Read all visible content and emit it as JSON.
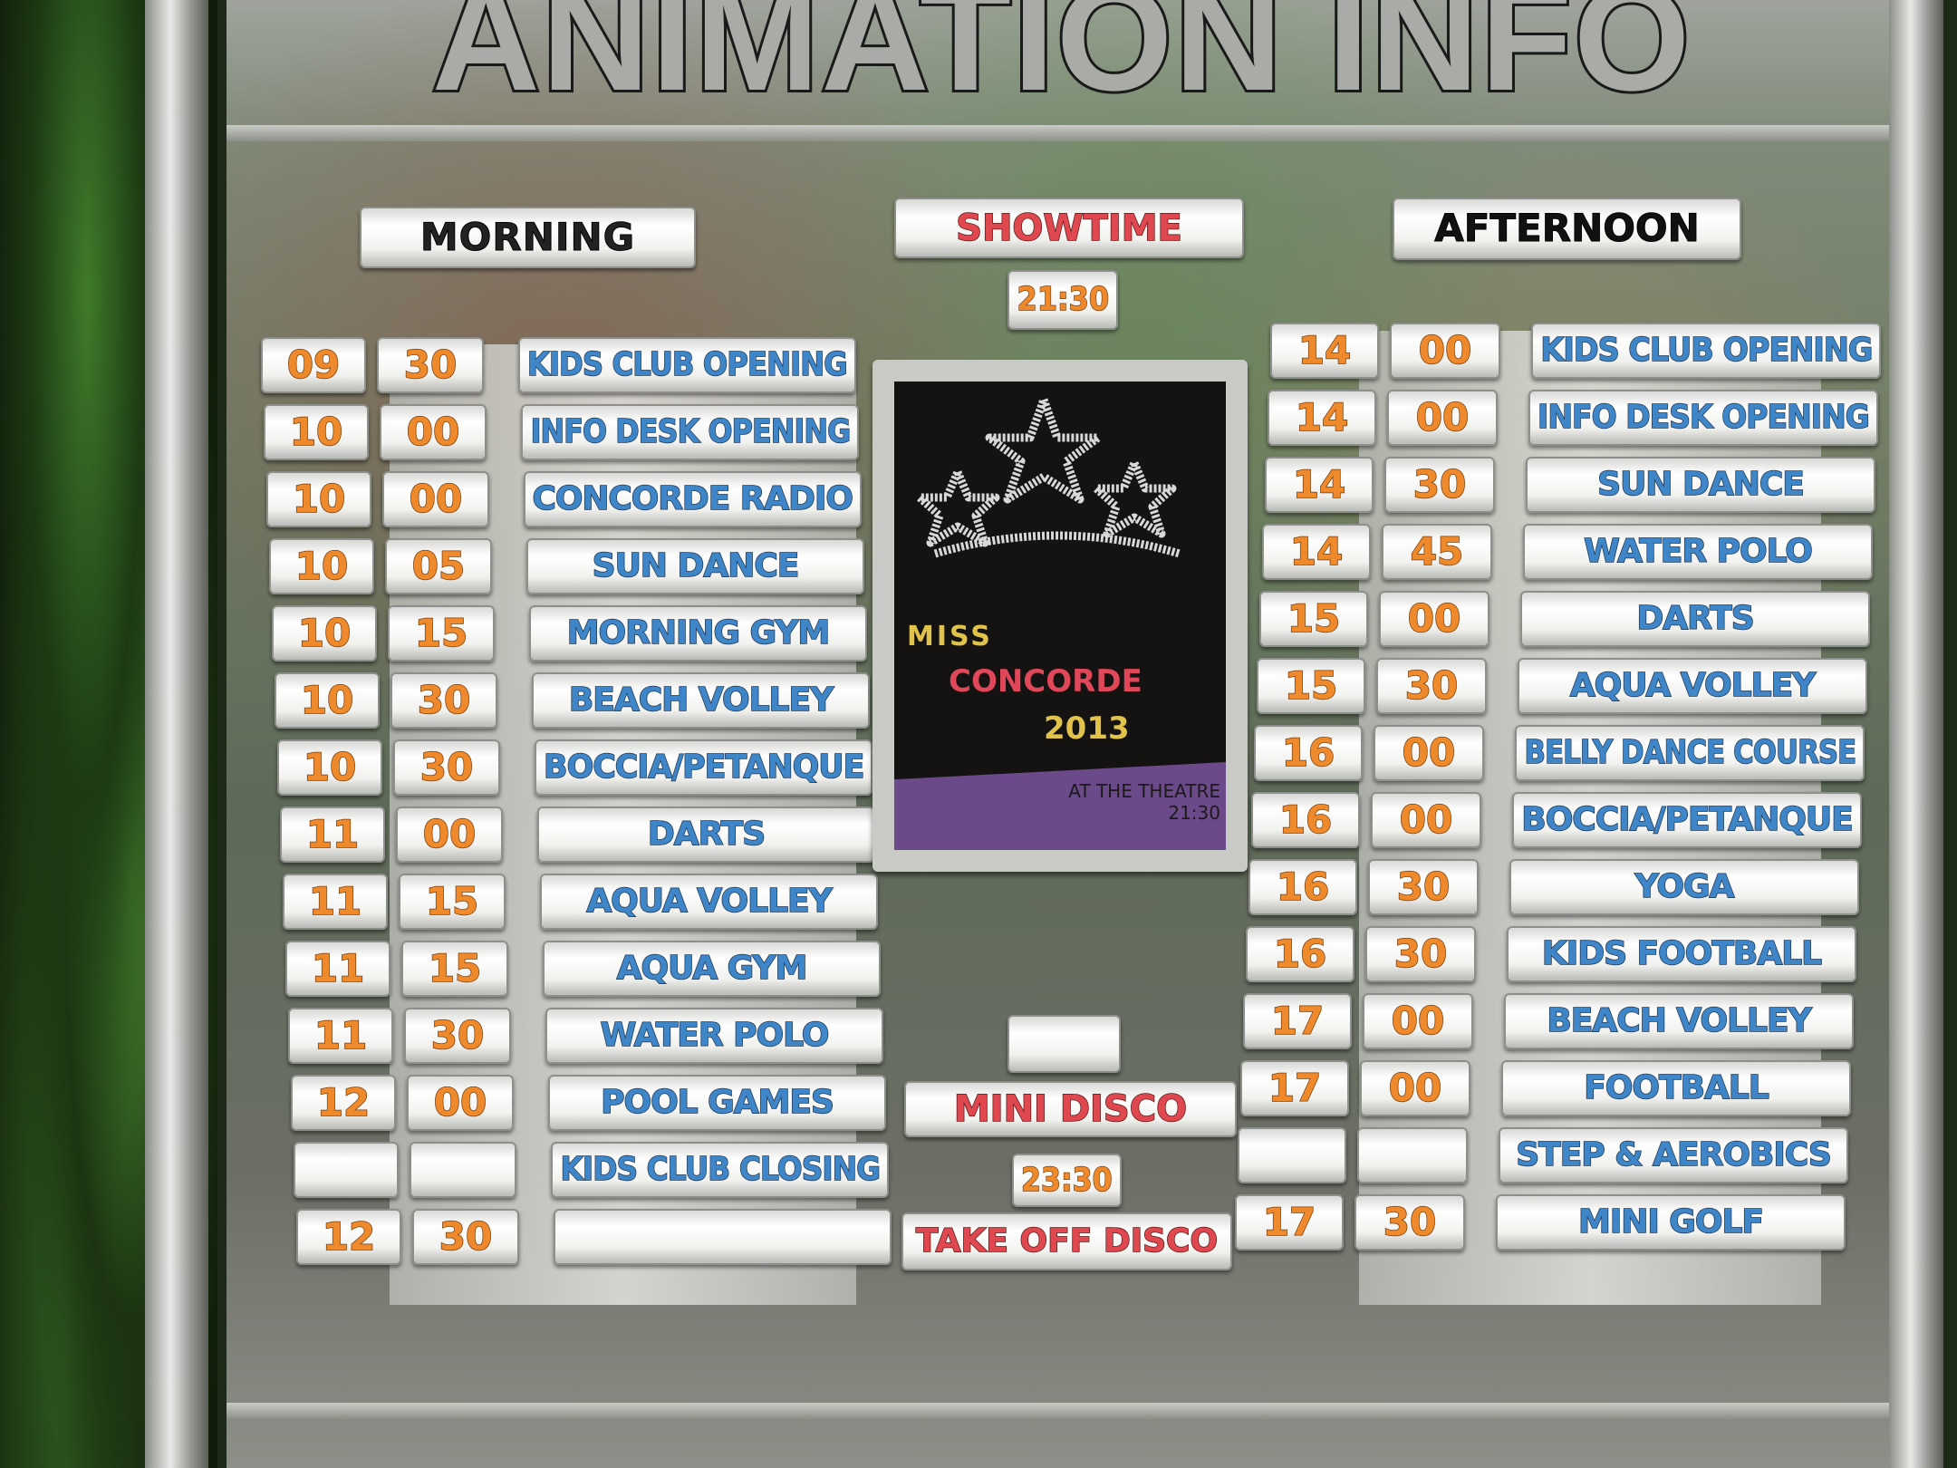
{
  "title": "ANIMATION INFO",
  "headers": {
    "morning": "MORNING",
    "showtime": "SHOWTIME",
    "showtime_time": "21:30",
    "afternoon": "AFTERNOON"
  },
  "poster": {
    "line1": "MISS",
    "line2": "CONCORDE",
    "line3": "2013",
    "venue": "AT THE THEATRE",
    "time": "21:30",
    "graphic": "star-tiara-icon"
  },
  "evening": [
    {
      "time": "",
      "activity": "MINI DISCO"
    },
    {
      "time": "23:30",
      "activity": "TAKE OFF DISCO"
    }
  ],
  "morning": [
    {
      "h": "09",
      "m": "30",
      "activity": "KIDS CLUB OPENING"
    },
    {
      "h": "10",
      "m": "00",
      "activity": "INFO DESK OPENING"
    },
    {
      "h": "10",
      "m": "00",
      "activity": "CONCORDE RADIO"
    },
    {
      "h": "10",
      "m": "05",
      "activity": "SUN DANCE"
    },
    {
      "h": "10",
      "m": "15",
      "activity": "MORNING GYM"
    },
    {
      "h": "10",
      "m": "30",
      "activity": "BEACH VOLLEY"
    },
    {
      "h": "10",
      "m": "30",
      "activity": "BOCCIA/PETANQUE"
    },
    {
      "h": "11",
      "m": "00",
      "activity": "DARTS"
    },
    {
      "h": "11",
      "m": "15",
      "activity": "AQUA VOLLEY"
    },
    {
      "h": "11",
      "m": "15",
      "activity": "AQUA GYM"
    },
    {
      "h": "11",
      "m": "30",
      "activity": "WATER POLO"
    },
    {
      "h": "12",
      "m": "00",
      "activity": "POOL GAMES"
    },
    {
      "h": "",
      "m": "",
      "activity": "KIDS CLUB CLOSING"
    },
    {
      "h": "12",
      "m": "30",
      "activity": ""
    }
  ],
  "afternoon": [
    {
      "h": "14",
      "m": "00",
      "activity": "KIDS CLUB OPENING"
    },
    {
      "h": "14",
      "m": "00",
      "activity": "INFO DESK OPENING"
    },
    {
      "h": "14",
      "m": "30",
      "activity": "SUN DANCE"
    },
    {
      "h": "14",
      "m": "45",
      "activity": "WATER POLO"
    },
    {
      "h": "15",
      "m": "00",
      "activity": "DARTS"
    },
    {
      "h": "15",
      "m": "30",
      "activity": "AQUA VOLLEY"
    },
    {
      "h": "16",
      "m": "00",
      "activity": "BELLY DANCE COURSE"
    },
    {
      "h": "16",
      "m": "00",
      "activity": "BOCCIA/PETANQUE"
    },
    {
      "h": "16",
      "m": "30",
      "activity": "YOGA"
    },
    {
      "h": "16",
      "m": "30",
      "activity": "KIDS FOOTBALL"
    },
    {
      "h": "17",
      "m": "00",
      "activity": "BEACH VOLLEY"
    },
    {
      "h": "17",
      "m": "00",
      "activity": "FOOTBALL"
    },
    {
      "h": "",
      "m": "",
      "activity": "STEP & AEROBICS"
    },
    {
      "h": "17",
      "m": "30",
      "activity": "MINI GOLF"
    }
  ],
  "colors": {
    "activity_text": "#3f86c9",
    "time_text": "#ee8a2c",
    "show_text": "#e0484f"
  }
}
